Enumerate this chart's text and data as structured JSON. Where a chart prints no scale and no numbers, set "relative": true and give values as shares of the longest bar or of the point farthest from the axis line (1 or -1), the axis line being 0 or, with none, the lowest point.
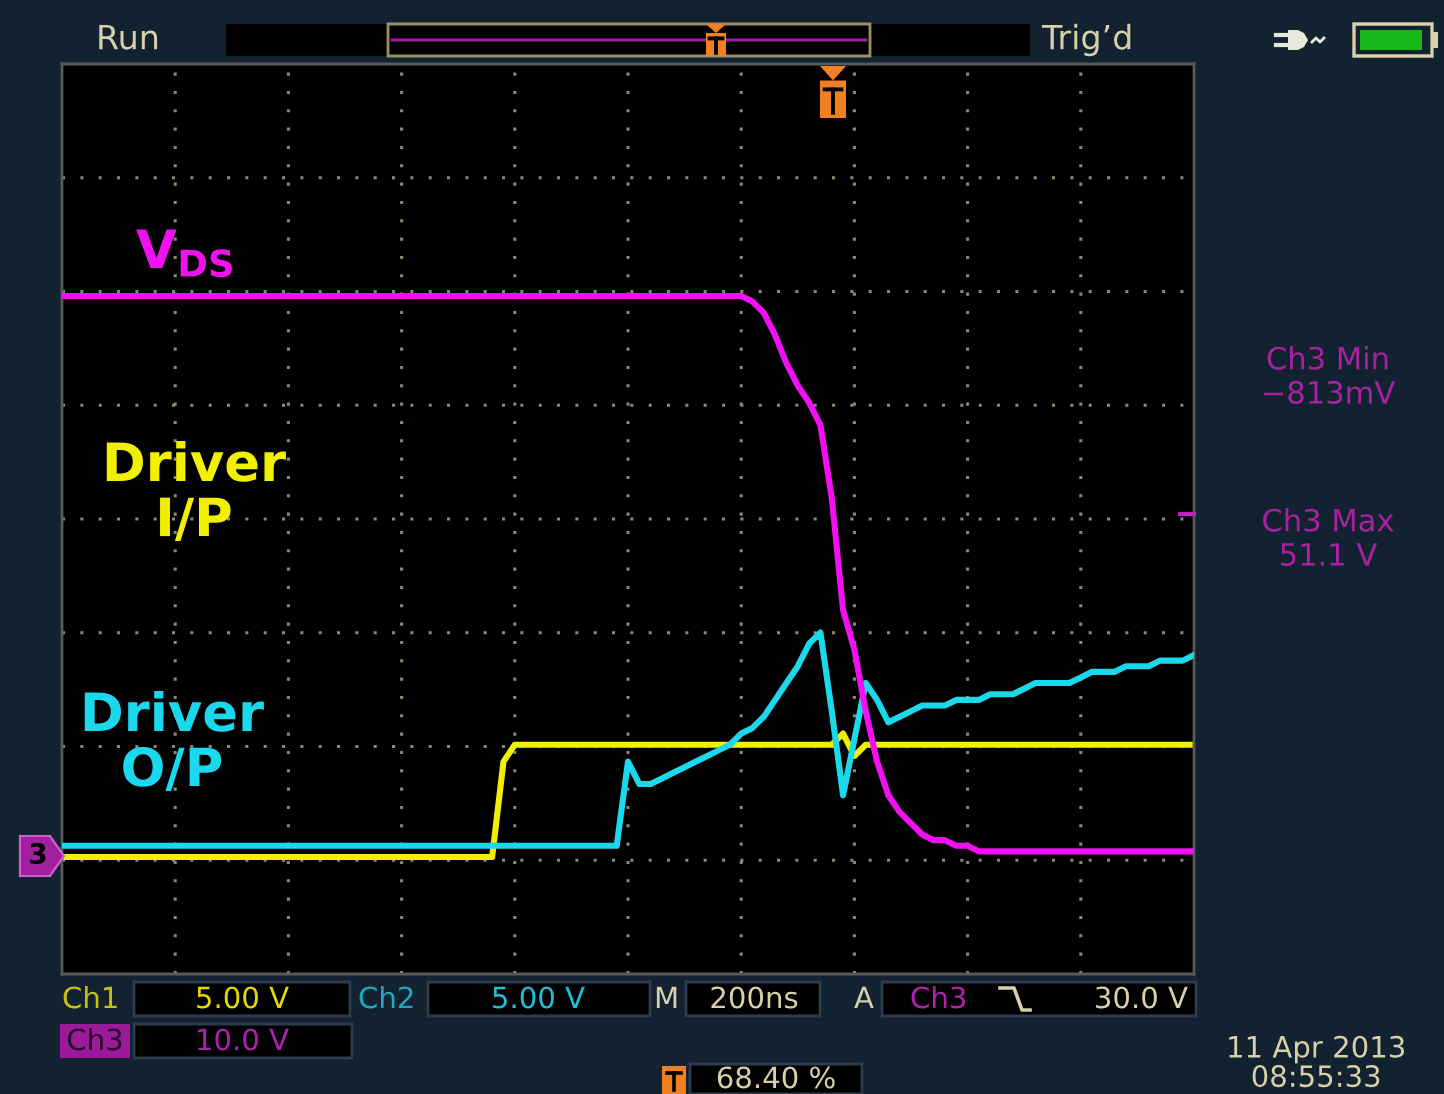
{
  "chart_data": {
    "type": "line",
    "relative": true,
    "grid": true,
    "tick_labels": false,
    "categories": [
      null,
      null,
      null,
      null,
      null,
      null,
      null,
      null,
      null,
      null,
      null,
      null,
      null,
      null,
      null,
      null,
      null,
      null,
      null,
      null,
      null,
      null,
      null,
      null,
      null,
      null,
      null,
      null,
      null,
      null,
      null,
      null,
      null,
      null,
      null,
      null,
      null,
      null,
      null,
      null,
      null,
      null,
      null,
      null,
      null,
      null,
      null,
      null,
      null,
      null,
      null,
      null,
      null,
      null,
      null,
      null,
      null,
      null,
      null,
      null,
      null,
      null,
      null,
      null,
      null,
      null,
      null,
      null,
      null,
      null,
      null,
      null,
      null,
      null,
      null,
      null,
      null,
      null,
      null,
      null,
      null,
      null,
      null,
      null,
      null,
      null,
      null,
      null,
      null,
      null,
      null,
      null,
      null,
      null,
      null,
      null,
      null,
      null,
      null,
      null,
      null
    ],
    "series": [
      {
        "name": "V$_{DS}$",
        "color": "#f010f0",
        "values": [
          1,
          1,
          1,
          1,
          1,
          1,
          1,
          1,
          1,
          1,
          1,
          1,
          1,
          1,
          1,
          1,
          1,
          1,
          1,
          1,
          1,
          1,
          1,
          1,
          1,
          1,
          1,
          1,
          1,
          1,
          1,
          1,
          1,
          1,
          1,
          1,
          1,
          1,
          1,
          1,
          1,
          1,
          1,
          1,
          1,
          1,
          1,
          1,
          1,
          1,
          1,
          1,
          1,
          1,
          1,
          1,
          1,
          1,
          1,
          1,
          1,
          0.99,
          0.97,
          0.93,
          0.88,
          0.84,
          0.81,
          0.77,
          0.64,
          0.44,
          0.37,
          0.26,
          0.17,
          0.11,
          0.08,
          0.06,
          0.04,
          0.03,
          0.03,
          0.02,
          0.02,
          0.01,
          0.01,
          0.01,
          0.01,
          0.01,
          0.01,
          0.01,
          0.01,
          0.01,
          0.01,
          0.01,
          0.01,
          0.01,
          0.01,
          0.01,
          0.01,
          0.01,
          0.01,
          0.01,
          0.01
        ]
      },
      {
        "name": "Driver\nI/P",
        "color": "#f0f000",
        "values": [
          0,
          0,
          0,
          0,
          0,
          0,
          0,
          0,
          0,
          0,
          0,
          0,
          0,
          0,
          0,
          0,
          0,
          0,
          0,
          0,
          0,
          0,
          0,
          0,
          0,
          0,
          0,
          0,
          0,
          0,
          0,
          0,
          0,
          0,
          0,
          0,
          0,
          0,
          0,
          0.17,
          0.2,
          0.2,
          0.2,
          0.2,
          0.2,
          0.2,
          0.2,
          0.2,
          0.2,
          0.2,
          0.2,
          0.2,
          0.2,
          0.2,
          0.2,
          0.2,
          0.2,
          0.2,
          0.2,
          0.2,
          0.2,
          0.2,
          0.2,
          0.2,
          0.2,
          0.2,
          0.2,
          0.2,
          0.2,
          0.22,
          0.18,
          0.2,
          0.2,
          0.2,
          0.2,
          0.2,
          0.2,
          0.2,
          0.2,
          0.2,
          0.2,
          0.2,
          0.2,
          0.2,
          0.2,
          0.2,
          0.2,
          0.2,
          0.2,
          0.2,
          0.2,
          0.2,
          0.2,
          0.2,
          0.2,
          0.2,
          0.2,
          0.2,
          0.2,
          0.2,
          0.2
        ]
      },
      {
        "name": "Driver\nO/P",
        "color": "#1cd8ec",
        "values": [
          0.02,
          0.02,
          0.02,
          0.02,
          0.02,
          0.02,
          0.02,
          0.02,
          0.02,
          0.02,
          0.02,
          0.02,
          0.02,
          0.02,
          0.02,
          0.02,
          0.02,
          0.02,
          0.02,
          0.02,
          0.02,
          0.02,
          0.02,
          0.02,
          0.02,
          0.02,
          0.02,
          0.02,
          0.02,
          0.02,
          0.02,
          0.02,
          0.02,
          0.02,
          0.02,
          0.02,
          0.02,
          0.02,
          0.02,
          0.02,
          0.02,
          0.02,
          0.02,
          0.02,
          0.02,
          0.02,
          0.02,
          0.02,
          0.02,
          0.02,
          0.17,
          0.13,
          0.13,
          0.14,
          0.15,
          0.16,
          0.17,
          0.18,
          0.19,
          0.2,
          0.22,
          0.23,
          0.25,
          0.28,
          0.31,
          0.34,
          0.38,
          0.4,
          0.26,
          0.11,
          0.21,
          0.31,
          0.28,
          0.24,
          0.25,
          0.26,
          0.27,
          0.27,
          0.27,
          0.28,
          0.28,
          0.28,
          0.29,
          0.29,
          0.29,
          0.3,
          0.31,
          0.31,
          0.31,
          0.31,
          0.32,
          0.33,
          0.33,
          0.33,
          0.34,
          0.34,
          0.34,
          0.35,
          0.35,
          0.35,
          0.36
        ]
      }
    ],
    "annotations": [
      "Run",
      "Trig’d",
      "Ch3 Min\n−813mV",
      "Ch3 Max\n51.1 V",
      "Ch1",
      "5.00 V",
      "Ch2",
      "5.00 V",
      "M",
      "200ns",
      "A",
      "Ch3",
      "30.0 V",
      "Ch3",
      "10.0 V",
      "68.40 %",
      "11 Apr 2013\n08:55:33",
      "3"
    ]
  }
}
